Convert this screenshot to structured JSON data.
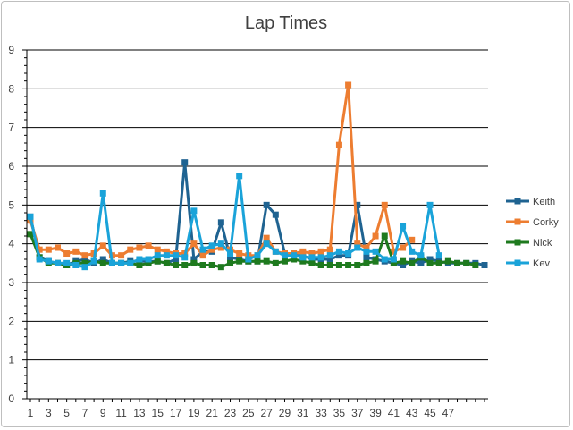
{
  "chart_data": {
    "type": "line",
    "title": "Lap Times",
    "xlabel": "",
    "ylabel": "",
    "ylim": [
      0,
      9
    ],
    "yticks": [
      0,
      1,
      2,
      3,
      4,
      5,
      6,
      7,
      8,
      9
    ],
    "x_tick_labels": [
      1,
      3,
      5,
      7,
      9,
      11,
      13,
      15,
      17,
      19,
      21,
      23,
      25,
      27,
      29,
      31,
      33,
      35,
      37,
      39,
      41,
      43,
      45,
      47
    ],
    "x_range": [
      1,
      51
    ],
    "grid": "horizontal",
    "legend_position": "right",
    "series": [
      {
        "name": "Keith",
        "color": "#1f6391",
        "values": [
          4.7,
          3.65,
          3.55,
          3.5,
          3.45,
          3.55,
          3.6,
          3.5,
          3.6,
          3.5,
          3.5,
          3.55,
          3.55,
          3.55,
          3.55,
          3.5,
          3.6,
          6.1,
          3.6,
          3.8,
          3.8,
          4.55,
          3.65,
          3.6,
          3.55,
          3.55,
          5.0,
          4.75,
          3.75,
          3.7,
          3.7,
          3.6,
          3.6,
          3.6,
          3.7,
          3.7,
          5.0,
          3.65,
          3.6,
          3.55,
          3.5,
          3.45,
          3.55,
          3.5,
          3.6,
          3.55,
          3.5,
          3.5,
          3.5,
          3.5,
          3.45
        ]
      },
      {
        "name": "Corky",
        "color": "#ed7d31",
        "values": [
          4.6,
          3.85,
          3.85,
          3.9,
          3.75,
          3.8,
          3.7,
          3.75,
          3.95,
          3.7,
          3.7,
          3.85,
          3.9,
          3.95,
          3.85,
          3.8,
          3.75,
          3.75,
          4.0,
          3.7,
          3.85,
          3.9,
          3.85,
          3.75,
          3.7,
          3.7,
          4.15,
          3.8,
          3.75,
          3.75,
          3.8,
          3.75,
          3.8,
          3.85,
          6.55,
          8.1,
          4.0,
          3.9,
          4.2,
          5.0,
          3.8,
          3.9,
          4.1
        ]
      },
      {
        "name": "Nick",
        "color": "#1e7a1e",
        "values": [
          4.25,
          3.65,
          3.5,
          3.5,
          3.45,
          3.5,
          3.5,
          3.55,
          3.5,
          3.5,
          3.5,
          3.5,
          3.45,
          3.5,
          3.55,
          3.5,
          3.45,
          3.45,
          3.5,
          3.45,
          3.45,
          3.4,
          3.5,
          3.55,
          3.55,
          3.55,
          3.55,
          3.5,
          3.55,
          3.6,
          3.55,
          3.5,
          3.45,
          3.45,
          3.45,
          3.45,
          3.45,
          3.5,
          3.55,
          4.2,
          3.5,
          3.55,
          3.5,
          3.65,
          3.5,
          3.5,
          3.55,
          3.5,
          3.5,
          3.45
        ]
      },
      {
        "name": "Kev",
        "color": "#1aa3d9",
        "values": [
          4.7,
          3.6,
          3.55,
          3.5,
          3.5,
          3.45,
          3.4,
          3.55,
          5.3,
          3.5,
          3.5,
          3.5,
          3.6,
          3.6,
          3.7,
          3.7,
          3.7,
          3.65,
          4.85,
          3.85,
          3.95,
          4.0,
          3.75,
          5.75,
          3.6,
          3.7,
          4.0,
          3.8,
          3.7,
          3.7,
          3.65,
          3.65,
          3.65,
          3.7,
          3.8,
          3.75,
          3.9,
          3.8,
          3.8,
          3.6,
          3.6,
          4.45,
          3.8,
          3.7,
          5.0,
          3.7
        ]
      }
    ]
  }
}
